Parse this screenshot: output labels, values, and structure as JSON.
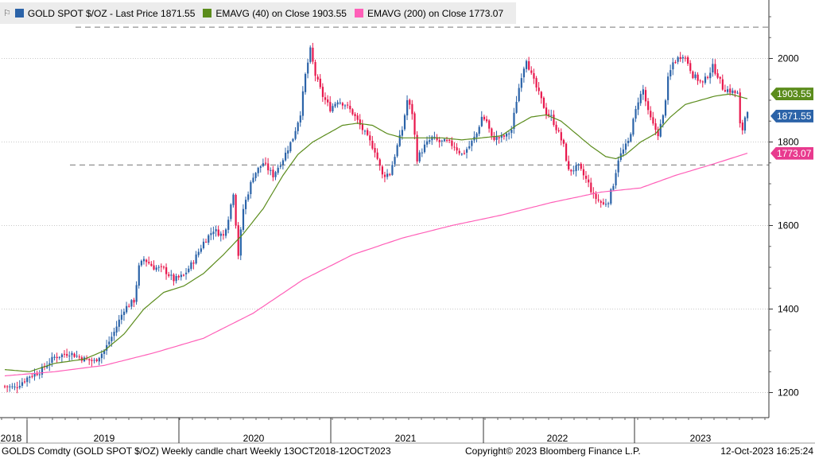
{
  "legend": {
    "flag_icon": "flag-icon",
    "items": [
      {
        "label": "GOLD SPOT $/OZ - Last Price 1871.55",
        "color": "#2b63a8"
      },
      {
        "label": "EMAVG (40)  on Close 1903.55",
        "color": "#5b8c1c"
      },
      {
        "label": "EMAVG (200)  on Close 1773.07",
        "color": "#ff5fb8"
      }
    ]
  },
  "tags": {
    "ema40": {
      "text": "1903.55",
      "color": "#5b8c1c",
      "value": 1903.55
    },
    "last": {
      "text": "1871.55",
      "color": "#2b63a8",
      "value": 1871.55
    },
    "ema200": {
      "text": "1773.07",
      "color": "#e83a8e",
      "value": 1773.07
    }
  },
  "footer": {
    "left": "GOLDS Comdty (GOLD SPOT $/OZ) Weekly candle chart  Weekly 13OCT2018-12OCT2023",
    "center": "Copyright© 2023 Bloomberg Finance L.P.",
    "right": "12-Oct-2023 16:25:24"
  },
  "chart_data": {
    "type": "candlestick",
    "frequency": "weekly",
    "x_range": [
      "2018-10-13",
      "2023-10-12"
    ],
    "x_ticks": [
      "2018",
      "2019",
      "2020",
      "2021",
      "2022",
      "2023"
    ],
    "y_ticks": [
      1200,
      1400,
      1600,
      1800,
      2000
    ],
    "ylim": [
      1140,
      2140
    ],
    "grid": "horizontal dotted",
    "legend_placement": "top-left",
    "reference_levels": [
      2075,
      1745
    ],
    "colors": {
      "up": "#2b63a8",
      "down": "#e8174c",
      "ema40": "#5b8c1c",
      "ema200": "#ff5fb8"
    },
    "series": [
      {
        "name": "GOLD SPOT $/OZ",
        "last": 1871.55,
        "anchors": [
          [
            0,
            1215
          ],
          [
            4,
            1212
          ],
          [
            10,
            1240
          ],
          [
            14,
            1250
          ],
          [
            20,
            1285
          ],
          [
            26,
            1295
          ],
          [
            32,
            1280
          ],
          [
            36,
            1275
          ],
          [
            40,
            1300
          ],
          [
            44,
            1345
          ],
          [
            48,
            1400
          ],
          [
            52,
            1420
          ],
          [
            54,
            1500
          ],
          [
            56,
            1520
          ],
          [
            60,
            1500
          ],
          [
            64,
            1495
          ],
          [
            68,
            1470
          ],
          [
            72,
            1480
          ],
          [
            76,
            1515
          ],
          [
            80,
            1560
          ],
          [
            84,
            1590
          ],
          [
            88,
            1575
          ],
          [
            90,
            1620
          ],
          [
            92,
            1680
          ],
          [
            94,
            1530
          ],
          [
            96,
            1640
          ],
          [
            100,
            1720
          ],
          [
            104,
            1750
          ],
          [
            108,
            1720
          ],
          [
            112,
            1760
          ],
          [
            116,
            1810
          ],
          [
            119,
            1870
          ],
          [
            121,
            1960
          ],
          [
            123,
            2020
          ],
          [
            125,
            1960
          ],
          [
            128,
            1910
          ],
          [
            131,
            1880
          ],
          [
            134,
            1900
          ],
          [
            137,
            1890
          ],
          [
            140,
            1870
          ],
          [
            143,
            1840
          ],
          [
            145,
            1820
          ],
          [
            147,
            1800
          ],
          [
            149,
            1780
          ],
          [
            152,
            1720
          ],
          [
            155,
            1725
          ],
          [
            158,
            1790
          ],
          [
            160,
            1830
          ],
          [
            162,
            1900
          ],
          [
            164,
            1870
          ],
          [
            166,
            1760
          ],
          [
            169,
            1790
          ],
          [
            172,
            1810
          ],
          [
            175,
            1800
          ],
          [
            178,
            1800
          ],
          [
            181,
            1790
          ],
          [
            184,
            1770
          ],
          [
            187,
            1790
          ],
          [
            190,
            1820
          ],
          [
            192,
            1860
          ],
          [
            194,
            1850
          ],
          [
            196,
            1810
          ],
          [
            199,
            1810
          ],
          [
            202,
            1815
          ],
          [
            204,
            1830
          ],
          [
            206,
            1900
          ],
          [
            208,
            1960
          ],
          [
            210,
            2000
          ],
          [
            212,
            1960
          ],
          [
            214,
            1930
          ],
          [
            216,
            1900
          ],
          [
            218,
            1870
          ],
          [
            220,
            1860
          ],
          [
            223,
            1820
          ],
          [
            225,
            1790
          ],
          [
            227,
            1730
          ],
          [
            229,
            1735
          ],
          [
            231,
            1740
          ],
          [
            233,
            1720
          ],
          [
            235,
            1700
          ],
          [
            237,
            1670
          ],
          [
            239,
            1660
          ],
          [
            241,
            1650
          ],
          [
            243,
            1660
          ],
          [
            245,
            1700
          ],
          [
            247,
            1760
          ],
          [
            249,
            1780
          ],
          [
            251,
            1800
          ],
          [
            253,
            1850
          ],
          [
            255,
            1900
          ],
          [
            257,
            1925
          ],
          [
            259,
            1870
          ],
          [
            261,
            1840
          ],
          [
            263,
            1820
          ],
          [
            265,
            1860
          ],
          [
            267,
            1950
          ],
          [
            269,
            1990
          ],
          [
            271,
            2000
          ],
          [
            273,
            2010
          ],
          [
            275,
            1990
          ],
          [
            277,
            1960
          ],
          [
            279,
            1950
          ],
          [
            281,
            1940
          ],
          [
            283,
            1960
          ],
          [
            285,
            1980
          ],
          [
            287,
            1960
          ],
          [
            289,
            1930
          ],
          [
            291,
            1925
          ],
          [
            293,
            1920
          ],
          [
            295,
            1915
          ],
          [
            296,
            1840
          ],
          [
            297,
            1830
          ],
          [
            298,
            1860
          ],
          [
            299,
            1871.55
          ]
        ]
      },
      {
        "name": "EMAVG (40)",
        "last": 1903.55,
        "anchors": [
          [
            0,
            1255
          ],
          [
            10,
            1250
          ],
          [
            20,
            1270
          ],
          [
            32,
            1280
          ],
          [
            40,
            1300
          ],
          [
            48,
            1340
          ],
          [
            56,
            1400
          ],
          [
            64,
            1440
          ],
          [
            72,
            1455
          ],
          [
            80,
            1485
          ],
          [
            88,
            1530
          ],
          [
            96,
            1580
          ],
          [
            104,
            1640
          ],
          [
            112,
            1720
          ],
          [
            118,
            1770
          ],
          [
            124,
            1800
          ],
          [
            130,
            1820
          ],
          [
            136,
            1840
          ],
          [
            142,
            1845
          ],
          [
            148,
            1840
          ],
          [
            154,
            1820
          ],
          [
            160,
            1810
          ],
          [
            168,
            1810
          ],
          [
            176,
            1810
          ],
          [
            184,
            1805
          ],
          [
            192,
            1810
          ],
          [
            200,
            1815
          ],
          [
            206,
            1840
          ],
          [
            212,
            1860
          ],
          [
            218,
            1865
          ],
          [
            224,
            1850
          ],
          [
            230,
            1820
          ],
          [
            236,
            1790
          ],
          [
            242,
            1765
          ],
          [
            246,
            1760
          ],
          [
            250,
            1770
          ],
          [
            256,
            1800
          ],
          [
            262,
            1820
          ],
          [
            268,
            1860
          ],
          [
            274,
            1890
          ],
          [
            280,
            1900
          ],
          [
            286,
            1910
          ],
          [
            292,
            1915
          ],
          [
            299,
            1903.55
          ]
        ]
      },
      {
        "name": "EMAVG (200)",
        "last": 1773.07,
        "anchors": [
          [
            0,
            1240
          ],
          [
            20,
            1250
          ],
          [
            40,
            1265
          ],
          [
            60,
            1295
          ],
          [
            80,
            1330
          ],
          [
            100,
            1390
          ],
          [
            120,
            1470
          ],
          [
            140,
            1530
          ],
          [
            160,
            1570
          ],
          [
            180,
            1600
          ],
          [
            200,
            1625
          ],
          [
            220,
            1655
          ],
          [
            240,
            1680
          ],
          [
            256,
            1690
          ],
          [
            270,
            1720
          ],
          [
            284,
            1745
          ],
          [
            299,
            1773.07
          ]
        ]
      }
    ]
  }
}
